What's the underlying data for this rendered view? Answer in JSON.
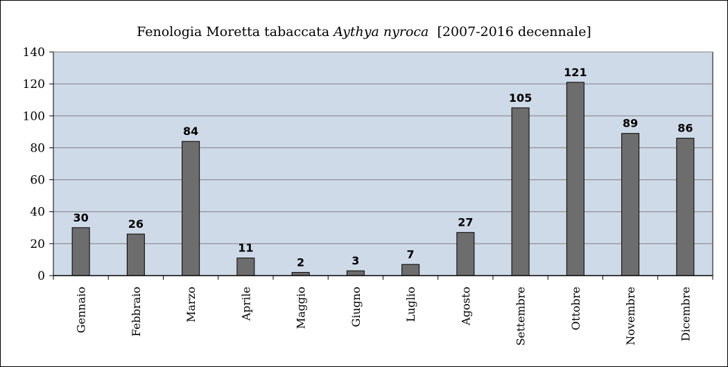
{
  "chart_data": {
    "type": "bar",
    "title_main": "Fenologia Moretta tabaccata ",
    "title_species": "Aythya nyroca",
    "title_period": "  [2007-2016 decennale]",
    "categories": [
      "Gennaio",
      "Febbraio",
      "Marzo",
      "Aprile",
      "Maggio",
      "Giugno",
      "Luglio",
      "Agosto",
      "Settembre",
      "Ottobre",
      "Novembre",
      "Dicembre"
    ],
    "values": [
      30,
      26,
      84,
      11,
      2,
      3,
      7,
      27,
      105,
      121,
      89,
      86
    ],
    "ylim": [
      0,
      140
    ],
    "yticks": [
      0,
      20,
      40,
      60,
      80,
      100,
      120,
      140
    ],
    "grid": true,
    "legend": "none",
    "colors": {
      "plot_background": "#cfdae8",
      "bar_fill": "#6d6d6d",
      "bar_stroke": "#000000",
      "grid": "#7f7f7f"
    }
  }
}
